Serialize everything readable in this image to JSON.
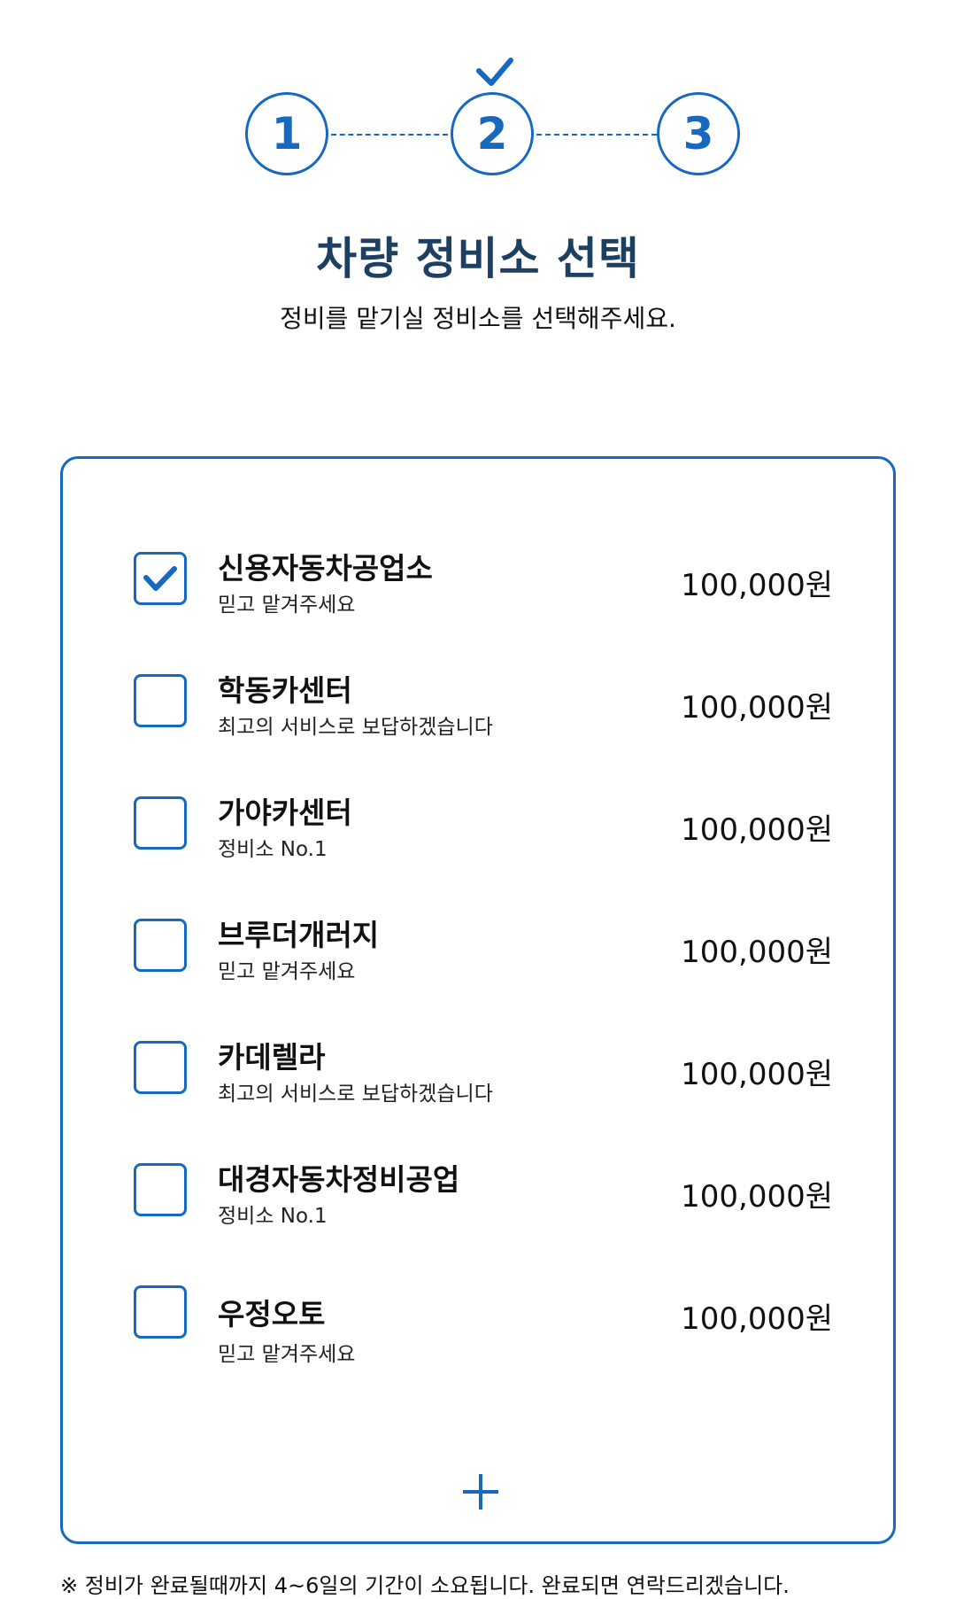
{
  "stepper": {
    "steps": [
      "1",
      "2",
      "3"
    ],
    "current_step": 2,
    "accent_color": "#1768c0"
  },
  "header": {
    "title": "차량 정비소 선택",
    "subtitle": "정비를 맡기실 정비소를 선택해주세요."
  },
  "shops": [
    {
      "name": "신용자동차공업소",
      "desc": "믿고 맡겨주세요",
      "price": "100,000원",
      "selected": true
    },
    {
      "name": "학동카센터",
      "desc": "최고의 서비스로 보답하겠습니다",
      "price": "100,000원",
      "selected": false
    },
    {
      "name": "가야카센터",
      "desc": "정비소 No.1",
      "price": "100,000원",
      "selected": false
    },
    {
      "name": "브루더개러지",
      "desc": "믿고 맡겨주세요",
      "price": "100,000원",
      "selected": false
    },
    {
      "name": "카데렐라",
      "desc": "최고의 서비스로 보답하겠습니다",
      "price": "100,000원",
      "selected": false
    },
    {
      "name": "대경자동차정비공업",
      "desc": "정비소 No.1",
      "price": "100,000원",
      "selected": false
    },
    {
      "name": "우정오토",
      "desc": "믿고 맡겨주세요",
      "price": "100,000원",
      "selected": false
    }
  ],
  "add_button": {
    "icon": "plus-icon"
  },
  "notice": "※ 정비가 완료될때까지 4~6일의 기간이 소요됩니다. 완료되면 연락드리겠습니다."
}
